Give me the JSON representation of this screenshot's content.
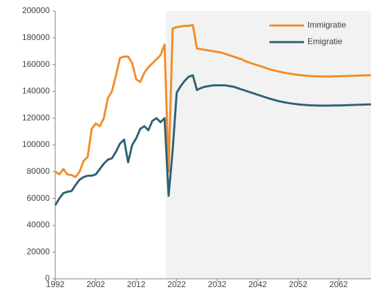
{
  "chart_data": {
    "type": "line",
    "x": [
      1992,
      1993,
      1994,
      1995,
      1996,
      1997,
      1998,
      1999,
      2000,
      2001,
      2002,
      2003,
      2004,
      2005,
      2006,
      2007,
      2008,
      2009,
      2010,
      2011,
      2012,
      2013,
      2014,
      2015,
      2016,
      2017,
      2018,
      2019,
      2020,
      2021,
      2022,
      2023,
      2024,
      2025,
      2026,
      2027,
      2028,
      2029,
      2030,
      2031,
      2032,
      2033,
      2034,
      2035,
      2036,
      2037,
      2038,
      2039,
      2040,
      2041,
      2042,
      2043,
      2044,
      2045,
      2046,
      2047,
      2048,
      2049,
      2050,
      2051,
      2052,
      2053,
      2054,
      2055,
      2056,
      2057,
      2058,
      2059,
      2060,
      2061,
      2062,
      2063,
      2064,
      2065,
      2066,
      2067,
      2068,
      2069,
      2070
    ],
    "series": [
      {
        "name": "Immigratie",
        "color": "#f28c28",
        "values": [
          80000,
          78000,
          82000,
          78000,
          77500,
          76000,
          80000,
          88000,
          91000,
          112000,
          116000,
          114000,
          120000,
          135000,
          140000,
          152000,
          165000,
          166000,
          166000,
          161000,
          149000,
          147000,
          154000,
          158000,
          161000,
          164000,
          167000,
          175000,
          80000,
          187000,
          188000,
          188500,
          189000,
          189000,
          189500,
          172000,
          171500,
          171000,
          170500,
          170000,
          169500,
          169000,
          168000,
          167000,
          166000,
          165000,
          164000,
          162500,
          161500,
          160500,
          159500,
          158500,
          157500,
          156500,
          155700,
          155000,
          154300,
          153700,
          153200,
          152700,
          152300,
          152000,
          151700,
          151500,
          151300,
          151200,
          151100,
          151100,
          151100,
          151200,
          151300,
          151400,
          151500,
          151600,
          151700,
          151800,
          151900,
          152000,
          152100
        ]
      },
      {
        "name": "Emigratie",
        "color": "#2e6175",
        "values": [
          55000,
          60000,
          64000,
          65000,
          65500,
          70000,
          74000,
          76000,
          77000,
          77000,
          78000,
          82000,
          86000,
          89000,
          90000,
          95000,
          101000,
          104000,
          87000,
          100000,
          105000,
          112000,
          114000,
          111000,
          118000,
          120000,
          117000,
          120000,
          62000,
          96000,
          139000,
          144000,
          148000,
          151000,
          152000,
          141000,
          142500,
          143500,
          144000,
          144500,
          144500,
          144500,
          144500,
          144000,
          143500,
          142500,
          141500,
          140500,
          139500,
          138500,
          137500,
          136500,
          135500,
          134600,
          133700,
          132900,
          132200,
          131600,
          131100,
          130700,
          130300,
          130000,
          129800,
          129600,
          129500,
          129400,
          129400,
          129400,
          129400,
          129500,
          129500,
          129600,
          129700,
          129800,
          129900,
          130000,
          130100,
          130200,
          130300
        ]
      }
    ],
    "xlim": [
      1992,
      2070
    ],
    "xticks": [
      1992,
      2002,
      2012,
      2022,
      2032,
      2042,
      2052,
      2062
    ],
    "ylim": [
      0,
      200000
    ],
    "yticks": [
      0,
      20000,
      40000,
      60000,
      80000,
      100000,
      120000,
      140000,
      160000,
      180000,
      200000
    ],
    "grid": false,
    "legend": "upper right",
    "shaded_region": {
      "x": [
        2019.3,
        2070
      ],
      "color": "#f2f2f2"
    }
  }
}
